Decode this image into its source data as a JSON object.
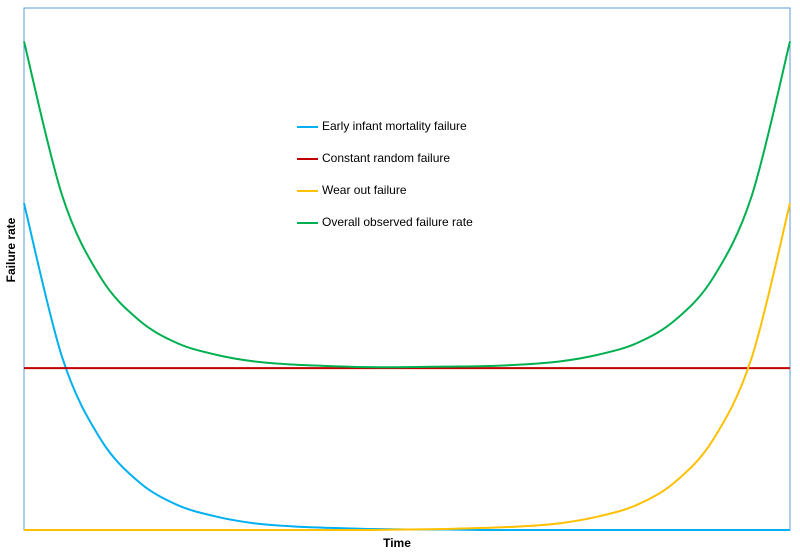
{
  "chart_data": {
    "type": "line",
    "xlabel": "Time",
    "ylabel": "Failure rate",
    "xlim": [
      0,
      100
    ],
    "ylim": [
      0,
      100
    ],
    "x": [
      0,
      5,
      10,
      15,
      20,
      25,
      30,
      35,
      40,
      45,
      50,
      55,
      60,
      65,
      70,
      75,
      80,
      85,
      90,
      95,
      100
    ],
    "series": [
      {
        "name": "Early infant mortality failure",
        "color": "#00b0f0",
        "values": [
          62.6,
          33.0,
          17.4,
          9.2,
          4.8,
          2.6,
          1.3,
          0.7,
          0.4,
          0.2,
          0.1,
          0.1,
          0,
          0,
          0,
          0,
          0,
          0,
          0,
          0,
          0
        ]
      },
      {
        "name": "Constant random failure",
        "color": "#c00000",
        "values": [
          31,
          31,
          31,
          31,
          31,
          31,
          31,
          31,
          31,
          31,
          31,
          31,
          31,
          31,
          31,
          31,
          31,
          31,
          31,
          31,
          31
        ]
      },
      {
        "name": "Wear out failure",
        "color": "#ffc000",
        "values": [
          0,
          0,
          0,
          0,
          0,
          0,
          0,
          0,
          0,
          0,
          0.1,
          0.2,
          0.4,
          0.7,
          1.3,
          2.6,
          4.8,
          9.2,
          17.4,
          33.0,
          62.6
        ]
      },
      {
        "name": "Overall observed failure rate",
        "color": "#00b050",
        "values": [
          93.6,
          64.0,
          48.4,
          40.2,
          35.8,
          33.6,
          32.3,
          31.7,
          31.4,
          31.2,
          31.2,
          31.3,
          31.4,
          31.7,
          32.3,
          33.6,
          35.8,
          40.2,
          48.4,
          64.0,
          93.6
        ]
      }
    ]
  }
}
